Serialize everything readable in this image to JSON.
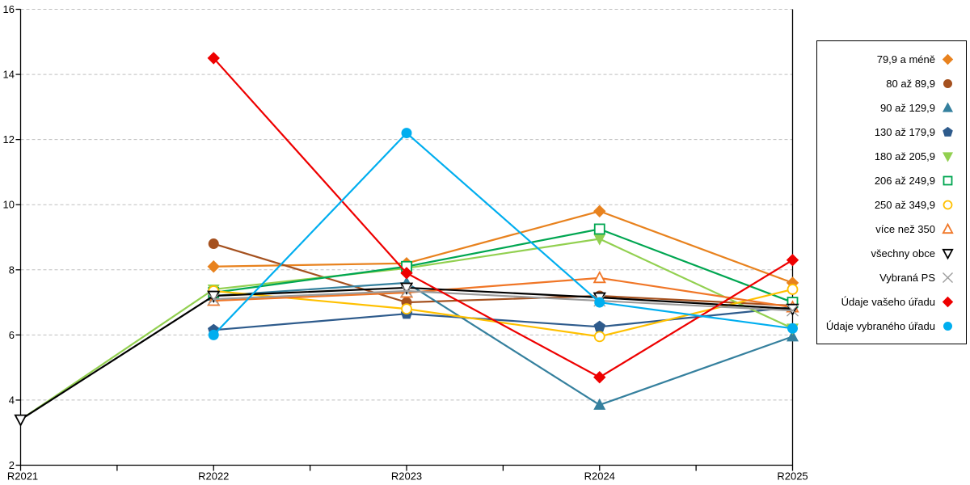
{
  "chart_data": {
    "type": "line",
    "title": "",
    "xlabel": "",
    "ylabel": "",
    "categories": [
      "R2021",
      "R2022",
      "R2023",
      "R2024",
      "R2025"
    ],
    "ylim": [
      2,
      16
    ],
    "yticks": [
      2,
      4,
      6,
      8,
      10,
      12,
      14,
      16
    ],
    "grid": "horizontal-dashed",
    "legend_position": "right",
    "gridline_color": "#BFBFBF",
    "axis_color": "#000000",
    "series": [
      {
        "name": "79,9 a méně",
        "color": "#E8821E",
        "marker": "diamond",
        "filled": true,
        "values": [
          null,
          8.1,
          8.2,
          9.8,
          7.6
        ]
      },
      {
        "name": "80 až 89,9",
        "color": "#A5511F",
        "marker": "circle",
        "filled": true,
        "values": [
          null,
          8.8,
          7.0,
          7.2,
          6.9
        ]
      },
      {
        "name": "90 až 129,9",
        "color": "#35809E",
        "marker": "triangle-up",
        "filled": true,
        "values": [
          null,
          7.2,
          7.6,
          3.85,
          5.95
        ]
      },
      {
        "name": "130 až 179,9",
        "color": "#2E5B8C",
        "marker": "pentagon",
        "filled": true,
        "values": [
          null,
          6.15,
          6.65,
          6.25,
          6.85
        ]
      },
      {
        "name": "180 až 205,9",
        "color": "#92D050",
        "marker": "triangle-down",
        "filled": true,
        "values": [
          3.4,
          7.4,
          8.05,
          8.95,
          6.2
        ]
      },
      {
        "name": "206 až 249,9",
        "color": "#00A651",
        "marker": "square",
        "filled": false,
        "values": [
          null,
          7.3,
          8.1,
          9.25,
          7.0
        ]
      },
      {
        "name": "250 až 349,9",
        "color": "#FFC000",
        "marker": "circle",
        "filled": false,
        "values": [
          null,
          7.35,
          6.8,
          5.95,
          7.4
        ]
      },
      {
        "name": "více než 350",
        "color": "#F07627",
        "marker": "triangle-up",
        "filled": false,
        "values": [
          null,
          7.05,
          7.3,
          7.75,
          6.85
        ]
      },
      {
        "name": "všechny obce",
        "color": "#000000",
        "marker": "triangle-down",
        "filled": false,
        "values": [
          3.4,
          7.2,
          7.45,
          7.15,
          6.8
        ]
      },
      {
        "name": "Vybraná PS",
        "color": "#9B9B9B",
        "marker": "x",
        "filled": false,
        "values": [
          null,
          7.1,
          7.35,
          7.05,
          6.75
        ]
      },
      {
        "name": "Údaje vašeho úřadu",
        "color": "#EE0000",
        "marker": "diamond",
        "filled": true,
        "values": [
          null,
          14.5,
          7.9,
          4.7,
          8.3
        ]
      },
      {
        "name": "Údaje vybraného úřadu",
        "color": "#00AEEF",
        "marker": "circle",
        "filled": true,
        "values": [
          null,
          6.0,
          12.2,
          7.0,
          6.2
        ]
      }
    ]
  }
}
